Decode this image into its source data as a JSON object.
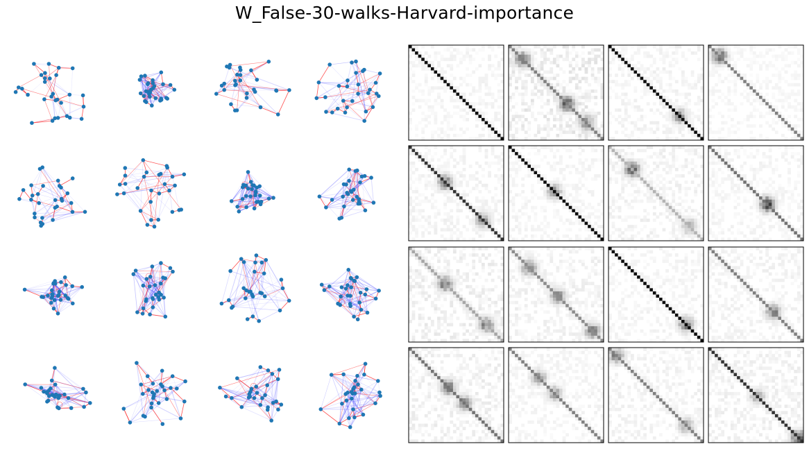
{
  "figure": {
    "title": "W_False-30-walks-Harvard-importance"
  },
  "chart_data": {
    "type": "figure_grid",
    "title": "W_False-30-walks-Harvard-importance",
    "layout": {
      "rows": 4,
      "graph_columns": 4,
      "heatmap_columns": 4
    },
    "graph_style": {
      "node_color": "#1f77b4",
      "walk_edge_color": "#ff3030",
      "weighted_edge_color": "#3a3aff"
    },
    "heatmap_style": {
      "colormap": "Greys",
      "matrix_size": 30,
      "axes_ticks": false
    },
    "graphs": [
      {
        "row": 0,
        "col": 0,
        "nodes": 30,
        "dense_blue": 0.05,
        "spread": 0.9
      },
      {
        "row": 0,
        "col": 1,
        "nodes": 30,
        "dense_blue": 0.75,
        "spread": 0.55
      },
      {
        "row": 0,
        "col": 2,
        "nodes": 30,
        "dense_blue": 0.15,
        "spread": 0.9
      },
      {
        "row": 0,
        "col": 3,
        "nodes": 30,
        "dense_blue": 0.25,
        "spread": 0.85
      },
      {
        "row": 1,
        "col": 0,
        "nodes": 30,
        "dense_blue": 0.2,
        "spread": 0.9
      },
      {
        "row": 1,
        "col": 1,
        "nodes": 30,
        "dense_blue": 0.1,
        "spread": 0.9
      },
      {
        "row": 1,
        "col": 2,
        "nodes": 30,
        "dense_blue": 0.8,
        "spread": 0.6
      },
      {
        "row": 1,
        "col": 3,
        "nodes": 30,
        "dense_blue": 0.55,
        "spread": 0.75
      },
      {
        "row": 2,
        "col": 0,
        "nodes": 30,
        "dense_blue": 0.7,
        "spread": 0.7
      },
      {
        "row": 2,
        "col": 1,
        "nodes": 30,
        "dense_blue": 0.65,
        "spread": 0.85
      },
      {
        "row": 2,
        "col": 2,
        "nodes": 30,
        "dense_blue": 0.35,
        "spread": 0.9
      },
      {
        "row": 2,
        "col": 3,
        "nodes": 30,
        "dense_blue": 0.55,
        "spread": 0.75
      },
      {
        "row": 3,
        "col": 0,
        "nodes": 30,
        "dense_blue": 0.6,
        "spread": 0.9
      },
      {
        "row": 3,
        "col": 1,
        "nodes": 30,
        "dense_blue": 0.3,
        "spread": 0.9
      },
      {
        "row": 3,
        "col": 2,
        "nodes": 30,
        "dense_blue": 0.5,
        "spread": 0.85
      },
      {
        "row": 3,
        "col": 3,
        "nodes": 30,
        "dense_blue": 0.6,
        "spread": 0.85
      }
    ],
    "heatmaps": [
      {
        "row": 0,
        "col": 0,
        "diag_intensity": 0.95,
        "off_diag_noise": 0.06,
        "clusters": []
      },
      {
        "row": 0,
        "col": 1,
        "diag_intensity": 0.5,
        "off_diag_noise": 0.12,
        "clusters": [
          {
            "i": 4,
            "intensity": 0.7
          },
          {
            "i": 18,
            "intensity": 0.75
          },
          {
            "i": 24,
            "intensity": 0.6
          }
        ]
      },
      {
        "row": 0,
        "col": 2,
        "diag_intensity": 0.95,
        "off_diag_noise": 0.07,
        "clusters": [
          {
            "i": 22,
            "intensity": 0.5
          }
        ]
      },
      {
        "row": 0,
        "col": 3,
        "diag_intensity": 0.5,
        "off_diag_noise": 0.05,
        "clusters": [
          {
            "i": 3,
            "intensity": 0.7
          }
        ]
      },
      {
        "row": 1,
        "col": 0,
        "diag_intensity": 0.8,
        "off_diag_noise": 0.07,
        "clusters": [
          {
            "i": 11,
            "intensity": 0.6
          },
          {
            "i": 23,
            "intensity": 0.55
          }
        ]
      },
      {
        "row": 1,
        "col": 1,
        "diag_intensity": 0.95,
        "off_diag_noise": 0.06,
        "clusters": [
          {
            "i": 14,
            "intensity": 0.5
          }
        ]
      },
      {
        "row": 1,
        "col": 2,
        "diag_intensity": 0.3,
        "off_diag_noise": 0.08,
        "clusters": [
          {
            "i": 7,
            "intensity": 0.8
          },
          {
            "i": 25,
            "intensity": 0.4
          }
        ]
      },
      {
        "row": 1,
        "col": 3,
        "diag_intensity": 0.55,
        "off_diag_noise": 0.06,
        "clusters": [
          {
            "i": 18,
            "intensity": 0.9
          }
        ]
      },
      {
        "row": 2,
        "col": 0,
        "diag_intensity": 0.35,
        "off_diag_noise": 0.1,
        "clusters": [
          {
            "i": 11,
            "intensity": 0.7
          },
          {
            "i": 24,
            "intensity": 0.6
          }
        ]
      },
      {
        "row": 2,
        "col": 1,
        "diag_intensity": 0.45,
        "off_diag_noise": 0.08,
        "clusters": [
          {
            "i": 6,
            "intensity": 0.6
          },
          {
            "i": 15,
            "intensity": 0.55
          },
          {
            "i": 26,
            "intensity": 0.6
          }
        ]
      },
      {
        "row": 2,
        "col": 2,
        "diag_intensity": 0.95,
        "off_diag_noise": 0.06,
        "clusters": [
          {
            "i": 24,
            "intensity": 0.7
          }
        ]
      },
      {
        "row": 2,
        "col": 3,
        "diag_intensity": 0.5,
        "off_diag_noise": 0.07,
        "clusters": [
          {
            "i": 20,
            "intensity": 0.6
          }
        ]
      },
      {
        "row": 3,
        "col": 0,
        "diag_intensity": 0.55,
        "off_diag_noise": 0.09,
        "clusters": [
          {
            "i": 12,
            "intensity": 0.65
          },
          {
            "i": 17,
            "intensity": 0.55
          }
        ]
      },
      {
        "row": 3,
        "col": 1,
        "diag_intensity": 0.5,
        "off_diag_noise": 0.06,
        "clusters": [
          {
            "i": 9,
            "intensity": 0.5
          },
          {
            "i": 14,
            "intensity": 0.45
          }
        ]
      },
      {
        "row": 3,
        "col": 2,
        "diag_intensity": 0.5,
        "off_diag_noise": 0.07,
        "clusters": [
          {
            "i": 2,
            "intensity": 0.6
          },
          {
            "i": 24,
            "intensity": 0.5
          }
        ]
      },
      {
        "row": 3,
        "col": 3,
        "diag_intensity": 0.8,
        "off_diag_noise": 0.08,
        "clusters": [
          {
            "i": 15,
            "intensity": 0.4
          },
          {
            "i": 28,
            "intensity": 0.75
          }
        ]
      }
    ]
  }
}
